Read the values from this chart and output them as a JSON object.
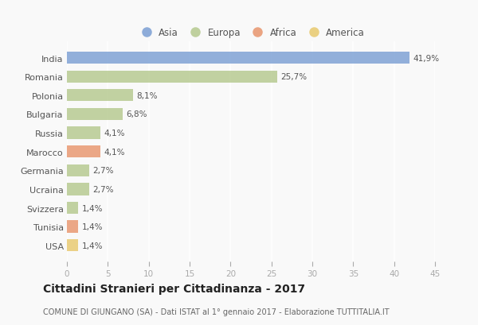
{
  "countries": [
    "India",
    "Romania",
    "Polonia",
    "Bulgaria",
    "Russia",
    "Marocco",
    "Germania",
    "Ucraina",
    "Svizzera",
    "Tunisia",
    "USA"
  ],
  "values": [
    41.9,
    25.7,
    8.1,
    6.8,
    4.1,
    4.1,
    2.7,
    2.7,
    1.4,
    1.4,
    1.4
  ],
  "labels": [
    "41,9%",
    "25,7%",
    "8,1%",
    "6,8%",
    "4,1%",
    "4,1%",
    "2,7%",
    "2,7%",
    "1,4%",
    "1,4%",
    "1,4%"
  ],
  "colors": [
    "#7b9fd4",
    "#b5c98e",
    "#b5c98e",
    "#b5c98e",
    "#b5c98e",
    "#e8956d",
    "#b5c98e",
    "#b5c98e",
    "#b5c98e",
    "#e8956d",
    "#e8c96d"
  ],
  "legend_labels": [
    "Asia",
    "Europa",
    "Africa",
    "America"
  ],
  "legend_colors": [
    "#7b9fd4",
    "#b5c98e",
    "#e8956d",
    "#e8c96d"
  ],
  "xlim": [
    0,
    45
  ],
  "xticks": [
    0,
    5,
    10,
    15,
    20,
    25,
    30,
    35,
    40,
    45
  ],
  "title": "Cittadini Stranieri per Cittadinanza - 2017",
  "subtitle": "COMUNE DI GIUNGANO (SA) - Dati ISTAT al 1° gennaio 2017 - Elaborazione TUTTITALIA.IT",
  "bg_color": "#f9f9f9",
  "grid_color": "#ffffff",
  "bar_height": 0.65,
  "label_fontsize": 7.5,
  "ytick_fontsize": 8.0,
  "xtick_fontsize": 7.5,
  "legend_fontsize": 8.5,
  "title_fontsize": 10,
  "subtitle_fontsize": 7.0
}
